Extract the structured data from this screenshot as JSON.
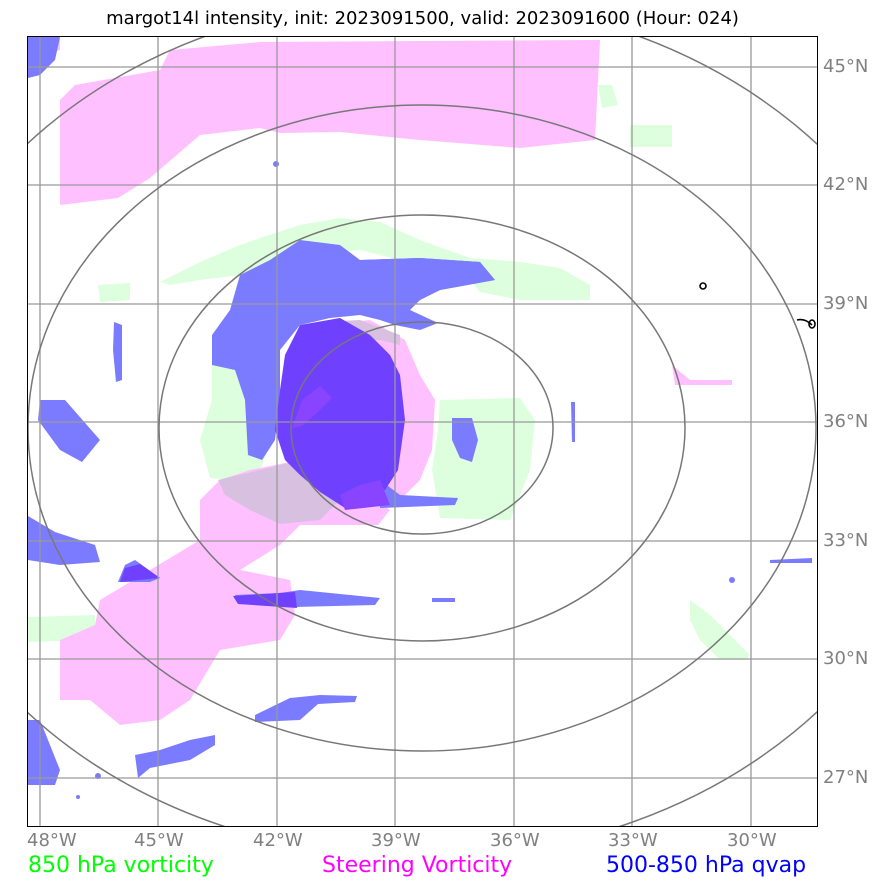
{
  "title": "margot14l intensity, init: 2023091500, valid: 2023091600 (Hour: 024)",
  "lon_ticks": [
    "48°W",
    "45°W",
    "42°W",
    "39°W",
    "36°W",
    "33°W",
    "30°W"
  ],
  "lat_ticks": [
    "45°N",
    "42°N",
    "39°N",
    "36°N",
    "33°N",
    "30°N",
    "27°N"
  ],
  "legend": [
    {
      "label": "850 hPa vorticity",
      "color": "#00ff00"
    },
    {
      "label": "Steering Vorticity",
      "color": "#ff00ff"
    },
    {
      "label": "500-850 hPa qvap",
      "color": "#0000ff"
    }
  ],
  "colors": {
    "vorticity_850": "#ddffdd",
    "steering_vorticity": "#ffc0ff",
    "qvap": "#7b7bff",
    "qvap_dark": "#7733ff",
    "overlap": "#d8c0e0",
    "gridline": "#999999",
    "range_ring": "#777777"
  }
}
